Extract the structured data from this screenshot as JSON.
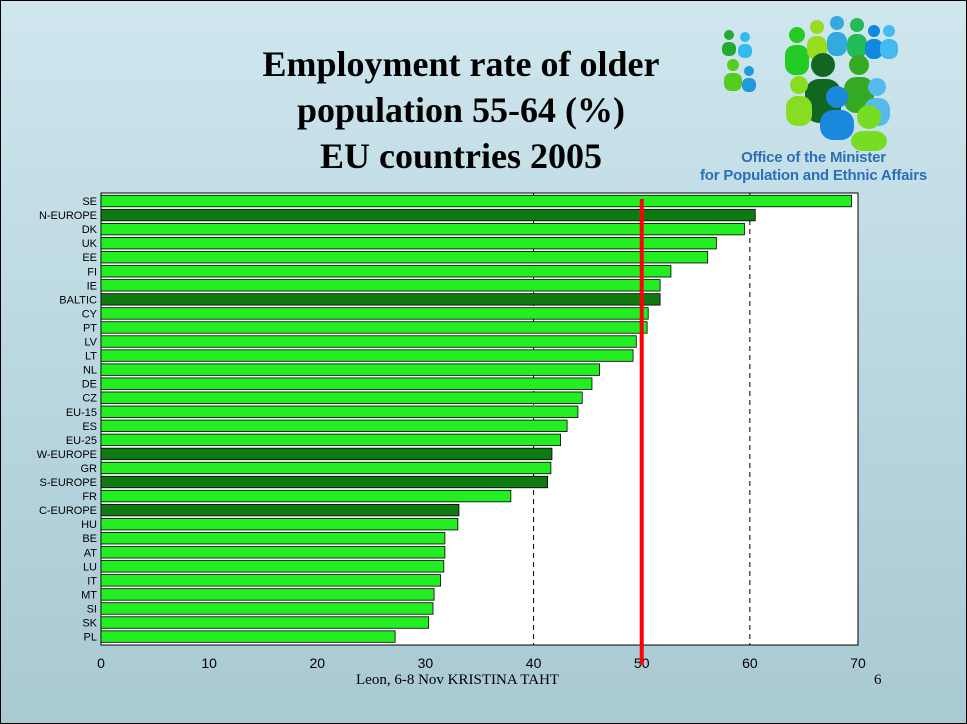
{
  "slide": {
    "title_lines": [
      "Employment rate of older",
      "population 55-64 (%)",
      "EU countries 2005"
    ],
    "org_lines": [
      "Office of the Minister",
      "for Population and Ethnic Affairs"
    ],
    "footer": "Leon, 6-8 Nov KRISTINA TAHT",
    "page_number": "6",
    "logo": "people-group-logo-icon"
  },
  "colors": {
    "bar_country": "#22ee22",
    "bar_region": "#0f7a12",
    "reference_line": "#ff0000",
    "org_text": "#2a6fb7"
  },
  "chart_data": {
    "type": "bar",
    "orientation": "horizontal",
    "categories": [
      "SE",
      "N-EUROPE",
      "DK",
      "UK",
      "EE",
      "FI",
      "IE",
      "BALTIC",
      "CY",
      "PT",
      "LV",
      "LT",
      "NL",
      "DE",
      "CZ",
      "EU-15",
      "ES",
      "EU-25",
      "W-EUROPE",
      "GR",
      "S-EUROPE",
      "FR",
      "C-EUROPE",
      "HU",
      "BE",
      "AT",
      "LU",
      "IT",
      "MT",
      "SI",
      "SK",
      "PL"
    ],
    "values": [
      69.4,
      60.5,
      59.5,
      56.9,
      56.1,
      52.7,
      51.7,
      51.7,
      50.6,
      50.5,
      49.5,
      49.2,
      46.1,
      45.4,
      44.5,
      44.1,
      43.1,
      42.5,
      41.7,
      41.6,
      41.3,
      37.9,
      33.1,
      33.0,
      31.8,
      31.8,
      31.7,
      31.4,
      30.8,
      30.7,
      30.3,
      27.2
    ],
    "region_categories": [
      "N-EUROPE",
      "BALTIC",
      "W-EUROPE",
      "S-EUROPE",
      "C-EUROPE"
    ],
    "x_ticks": [
      "0",
      "10",
      "20",
      "30",
      "40",
      "50",
      "60",
      "70"
    ],
    "xlim": [
      0,
      70
    ],
    "reference_line": 50,
    "grid": "vertical dashed at 40 and 60",
    "title": "Employment rate of older population 55-64 (%) EU countries 2005",
    "xlabel": "",
    "ylabel": ""
  }
}
